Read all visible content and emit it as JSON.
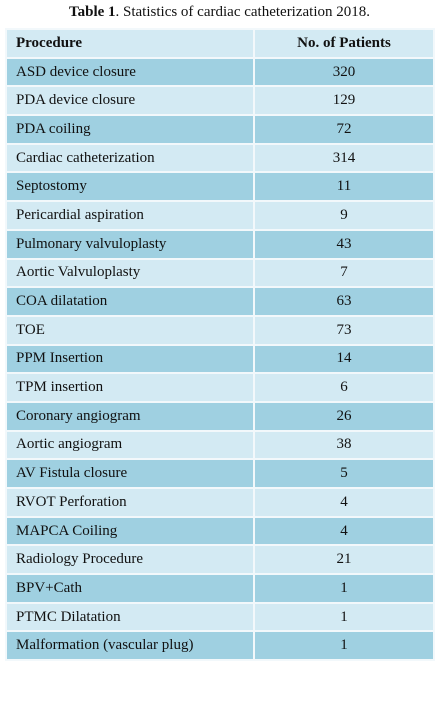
{
  "caption": {
    "label": "Table 1",
    "text": ". Statistics of cardiac catheterization 2018."
  },
  "table": {
    "header": [
      "Procedure",
      "No. of Patients"
    ],
    "rows": [
      [
        "ASD device closure",
        320
      ],
      [
        "PDA device closure",
        129
      ],
      [
        "PDA coiling",
        72
      ],
      [
        "Cardiac catheterization",
        314
      ],
      [
        "Septostomy",
        11
      ],
      [
        "Pericardial aspiration",
        9
      ],
      [
        "Pulmonary valvuloplasty",
        43
      ],
      [
        "Aortic Valvuloplasty",
        7
      ],
      [
        "COA dilatation",
        63
      ],
      [
        "TOE",
        73
      ],
      [
        "PPM Insertion",
        14
      ],
      [
        "TPM insertion",
        6
      ],
      [
        "Coronary angiogram",
        26
      ],
      [
        "Aortic angiogram",
        38
      ],
      [
        "AV Fistula closure",
        5
      ],
      [
        "RVOT Perforation",
        4
      ],
      [
        "MAPCA Coiling",
        4
      ],
      [
        "Radiology Procedure",
        21
      ],
      [
        "BPV+Cath",
        1
      ],
      [
        "PTMC Dilatation",
        1
      ],
      [
        "Malformation (vascular plug)",
        1
      ]
    ]
  }
}
